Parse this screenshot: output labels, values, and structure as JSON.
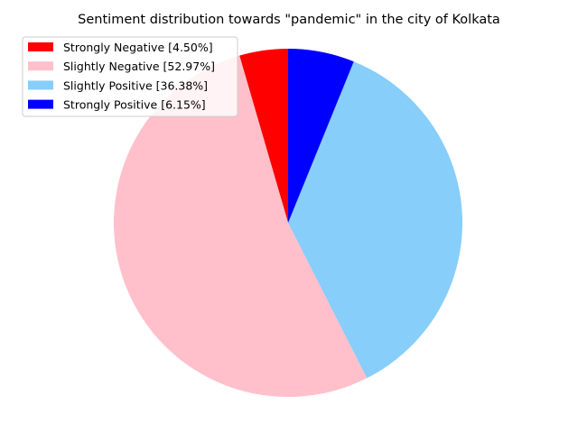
{
  "chart_data": {
    "type": "pie",
    "title": "Sentiment distribution towards \"pandemic\" in the city of Kolkata",
    "slices": [
      {
        "label": "Strongly Negative",
        "value": 4.5,
        "color": "#ff0000"
      },
      {
        "label": "Slightly Negative",
        "value": 52.97,
        "color": "#ffc0cb"
      },
      {
        "label": "Slightly Positive",
        "value": 36.38,
        "color": "#87cefa"
      },
      {
        "label": "Strongly Positive",
        "value": 6.15,
        "color": "#0000ff"
      }
    ],
    "legend_entries": [
      "Strongly Negative [4.50%]",
      "Slightly Negative [52.97%]",
      "Slightly Positive [36.38%]",
      "Strongly Positive [6.15%]"
    ],
    "start_angle_deg": 90,
    "direction": "counterclockwise",
    "legend_placement": "upper-left"
  }
}
